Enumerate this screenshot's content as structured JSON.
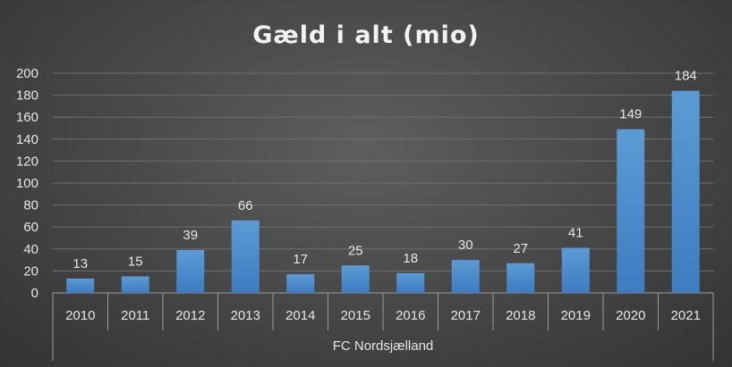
{
  "chart_data": {
    "type": "bar",
    "title": "Gæld i alt (mio)",
    "categories": [
      "2010",
      "2011",
      "2012",
      "2013",
      "2014",
      "2015",
      "2016",
      "2017",
      "2018",
      "2019",
      "2020",
      "2021"
    ],
    "group_label": "FC Nordsjælland",
    "series": [
      {
        "values": [
          13,
          15,
          39,
          66,
          17,
          25,
          18,
          30,
          27,
          41,
          149,
          184
        ]
      }
    ],
    "ylim": [
      0,
      200
    ],
    "yticks": [
      0,
      20,
      40,
      60,
      80,
      100,
      120,
      140,
      160,
      180,
      200
    ],
    "grid": true,
    "data_labels": true,
    "colors": {
      "bar_top": "#5b9bd5",
      "bar_bottom": "#3e7cc0"
    }
  }
}
